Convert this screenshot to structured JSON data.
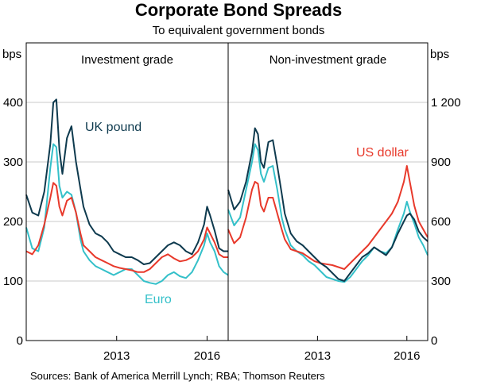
{
  "title": "Corporate Bond Spreads",
  "subtitle": "To equivalent government bonds",
  "source": "Sources:  Bank of America Merrill Lynch; RBA; Thomson Reuters",
  "colors": {
    "uk_pound": "#0e3a4e",
    "us_dollar": "#e8392b",
    "euro": "#34c0c9"
  },
  "chart_data": [
    {
      "type": "line",
      "panel_title": "Investment grade",
      "ylabel": "bps",
      "ylim": [
        0,
        500
      ],
      "yticks": [
        "0",
        "100",
        "200",
        "300",
        "400"
      ],
      "yaxis_side": "left",
      "x_range": [
        2010.0,
        2016.7
      ],
      "xticks": [
        {
          "value": 2013,
          "label": "2013"
        },
        {
          "value": 2016,
          "label": "2016"
        }
      ],
      "annotations": [
        {
          "series": "UK pound",
          "text": "UK pound"
        },
        {
          "series": "Euro",
          "text": "Euro"
        }
      ],
      "series": [
        {
          "name": "UK pound",
          "color": "#0e3a4e",
          "x": [
            2010.0,
            2010.2,
            2010.4,
            2010.6,
            2010.8,
            2010.9,
            2011.0,
            2011.1,
            2011.2,
            2011.35,
            2011.5,
            2011.65,
            2011.8,
            2011.9,
            2012.1,
            2012.3,
            2012.5,
            2012.7,
            2012.9,
            2013.1,
            2013.3,
            2013.5,
            2013.7,
            2013.9,
            2014.1,
            2014.3,
            2014.5,
            2014.7,
            2014.9,
            2015.1,
            2015.3,
            2015.5,
            2015.7,
            2015.9,
            2016.0,
            2016.1,
            2016.25,
            2016.4,
            2016.55,
            2016.7
          ],
          "y": [
            245,
            215,
            210,
            250,
            330,
            400,
            405,
            320,
            280,
            340,
            360,
            300,
            255,
            225,
            195,
            180,
            175,
            165,
            150,
            145,
            140,
            140,
            135,
            128,
            130,
            140,
            150,
            160,
            165,
            160,
            150,
            145,
            165,
            195,
            225,
            210,
            185,
            155,
            150,
            150
          ]
        },
        {
          "name": "US dollar",
          "color": "#e8392b",
          "x": [
            2010.0,
            2010.2,
            2010.4,
            2010.6,
            2010.8,
            2010.9,
            2011.0,
            2011.1,
            2011.2,
            2011.35,
            2011.5,
            2011.65,
            2011.8,
            2011.9,
            2012.1,
            2012.3,
            2012.5,
            2012.7,
            2012.9,
            2013.1,
            2013.3,
            2013.5,
            2013.7,
            2013.9,
            2014.1,
            2014.3,
            2014.5,
            2014.7,
            2014.9,
            2015.1,
            2015.3,
            2015.5,
            2015.7,
            2015.9,
            2016.0,
            2016.1,
            2016.25,
            2016.4,
            2016.55,
            2016.7
          ],
          "y": [
            150,
            145,
            160,
            195,
            240,
            265,
            260,
            225,
            210,
            235,
            240,
            215,
            180,
            160,
            150,
            140,
            135,
            130,
            125,
            122,
            120,
            118,
            115,
            115,
            120,
            130,
            140,
            145,
            138,
            133,
            135,
            140,
            150,
            170,
            190,
            180,
            165,
            145,
            140,
            140
          ]
        },
        {
          "name": "Euro",
          "color": "#34c0c9",
          "x": [
            2010.0,
            2010.2,
            2010.4,
            2010.6,
            2010.8,
            2010.9,
            2011.0,
            2011.1,
            2011.2,
            2011.35,
            2011.5,
            2011.65,
            2011.8,
            2011.9,
            2012.1,
            2012.3,
            2012.5,
            2012.7,
            2012.9,
            2013.1,
            2013.3,
            2013.5,
            2013.7,
            2013.9,
            2014.1,
            2014.3,
            2014.5,
            2014.7,
            2014.9,
            2015.1,
            2015.3,
            2015.5,
            2015.7,
            2015.9,
            2016.0,
            2016.1,
            2016.25,
            2016.4,
            2016.55,
            2016.7
          ],
          "y": [
            190,
            155,
            150,
            190,
            290,
            330,
            325,
            260,
            240,
            250,
            245,
            215,
            170,
            150,
            135,
            125,
            120,
            115,
            110,
            115,
            120,
            120,
            110,
            100,
            97,
            95,
            100,
            110,
            115,
            108,
            105,
            115,
            135,
            160,
            180,
            165,
            150,
            125,
            115,
            110
          ]
        }
      ]
    },
    {
      "type": "line",
      "panel_title": "Non-investment grade",
      "ylabel": "bps",
      "ylim": [
        0,
        1500
      ],
      "yticks": [
        "0",
        "300",
        "600",
        "900",
        "1 200"
      ],
      "yaxis_side": "right",
      "x_range": [
        2010.0,
        2016.7
      ],
      "xticks": [
        {
          "value": 2013,
          "label": "2013"
        },
        {
          "value": 2016,
          "label": "2016"
        }
      ],
      "annotations": [
        {
          "series": "US dollar",
          "text": "US dollar"
        }
      ],
      "series": [
        {
          "name": "UK pound",
          "color": "#0e3a4e",
          "x": [
            2010.0,
            2010.2,
            2010.4,
            2010.6,
            2010.8,
            2010.9,
            2011.0,
            2011.1,
            2011.2,
            2011.35,
            2011.5,
            2011.65,
            2011.8,
            2011.9,
            2012.1,
            2012.3,
            2012.5,
            2012.7,
            2012.9,
            2013.1,
            2013.3,
            2013.5,
            2013.7,
            2013.9,
            2014.1,
            2014.3,
            2014.5,
            2014.7,
            2014.9,
            2015.1,
            2015.3,
            2015.5,
            2015.7,
            2015.9,
            2016.0,
            2016.1,
            2016.25,
            2016.4,
            2016.55,
            2016.7
          ],
          "y": [
            760,
            660,
            700,
            800,
            950,
            1070,
            1040,
            900,
            870,
            1000,
            1010,
            880,
            740,
            640,
            540,
            500,
            480,
            450,
            420,
            390,
            370,
            340,
            310,
            300,
            340,
            380,
            420,
            440,
            470,
            450,
            430,
            470,
            540,
            600,
            630,
            640,
            610,
            550,
            520,
            500
          ]
        },
        {
          "name": "US dollar",
          "color": "#e8392b",
          "x": [
            2010.0,
            2010.2,
            2010.4,
            2010.6,
            2010.8,
            2010.9,
            2011.0,
            2011.1,
            2011.2,
            2011.35,
            2011.5,
            2011.65,
            2011.8,
            2011.9,
            2012.1,
            2012.3,
            2012.5,
            2012.7,
            2012.9,
            2013.1,
            2013.3,
            2013.5,
            2013.7,
            2013.9,
            2014.1,
            2014.3,
            2014.5,
            2014.7,
            2014.9,
            2015.1,
            2015.3,
            2015.5,
            2015.7,
            2015.9,
            2016.0,
            2016.1,
            2016.25,
            2016.4,
            2016.55,
            2016.7
          ],
          "y": [
            560,
            490,
            520,
            620,
            760,
            800,
            790,
            680,
            650,
            720,
            720,
            640,
            560,
            510,
            460,
            450,
            440,
            420,
            400,
            390,
            385,
            380,
            370,
            360,
            390,
            420,
            450,
            480,
            520,
            560,
            600,
            640,
            700,
            800,
            880,
            800,
            680,
            600,
            560,
            520
          ]
        },
        {
          "name": "Euro",
          "color": "#34c0c9",
          "x": [
            2010.0,
            2010.2,
            2010.4,
            2010.6,
            2010.8,
            2010.9,
            2011.0,
            2011.1,
            2011.2,
            2011.35,
            2011.5,
            2011.65,
            2011.8,
            2011.9,
            2012.1,
            2012.3,
            2012.5,
            2012.7,
            2012.9,
            2013.1,
            2013.3,
            2013.5,
            2013.7,
            2013.9,
            2014.1,
            2014.3,
            2014.5,
            2014.7,
            2014.9,
            2015.1,
            2015.3,
            2015.5,
            2015.7,
            2015.9,
            2016.0,
            2016.1,
            2016.25,
            2016.4,
            2016.55,
            2016.7
          ],
          "y": [
            660,
            580,
            620,
            760,
            900,
            990,
            960,
            840,
            800,
            870,
            880,
            760,
            620,
            560,
            480,
            450,
            430,
            400,
            380,
            350,
            320,
            310,
            300,
            295,
            320,
            360,
            400,
            430,
            470,
            450,
            440,
            470,
            560,
            640,
            700,
            650,
            590,
            520,
            480,
            430
          ]
        }
      ]
    }
  ]
}
